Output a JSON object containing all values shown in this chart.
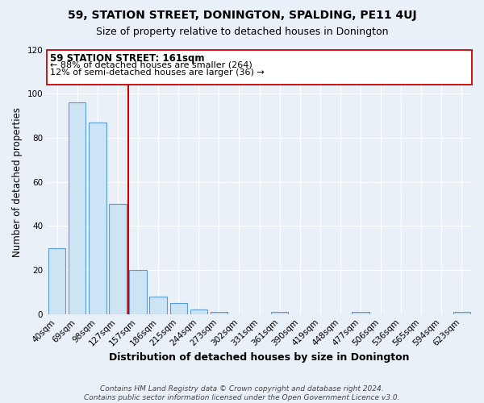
{
  "title": "59, STATION STREET, DONINGTON, SPALDING, PE11 4UJ",
  "subtitle": "Size of property relative to detached houses in Donington",
  "xlabel": "Distribution of detached houses by size in Donington",
  "ylabel": "Number of detached properties",
  "categories": [
    "40sqm",
    "69sqm",
    "98sqm",
    "127sqm",
    "157sqm",
    "186sqm",
    "215sqm",
    "244sqm",
    "273sqm",
    "302sqm",
    "331sqm",
    "361sqm",
    "390sqm",
    "419sqm",
    "448sqm",
    "477sqm",
    "506sqm",
    "536sqm",
    "565sqm",
    "594sqm",
    "623sqm"
  ],
  "values": [
    30,
    96,
    87,
    50,
    20,
    8,
    5,
    2,
    1,
    0,
    0,
    1,
    0,
    0,
    0,
    1,
    0,
    0,
    0,
    0,
    1
  ],
  "bar_color": "#cde4f5",
  "bar_edge_color": "#5b9bd5",
  "vline_pos": 3.5,
  "vline_color": "#cc0000",
  "annotation_box_color": "#cc0000",
  "annotation_line1": "59 STATION STREET: 161sqm",
  "annotation_line2": "← 88% of detached houses are smaller (264)",
  "annotation_line3": "12% of semi-detached houses are larger (36) →",
  "ylim": [
    0,
    120
  ],
  "yticks": [
    0,
    20,
    40,
    60,
    80,
    100,
    120
  ],
  "footer_line1": "Contains HM Land Registry data © Crown copyright and database right 2024.",
  "footer_line2": "Contains public sector information licensed under the Open Government Licence v3.0.",
  "background_color": "#eaf0f8",
  "plot_bg_color": "#eaf0f8",
  "title_fontsize": 10,
  "subtitle_fontsize": 9,
  "xlabel_fontsize": 9,
  "ylabel_fontsize": 8.5,
  "tick_fontsize": 7.5,
  "footer_fontsize": 6.5,
  "annotation_fontsize1": 8.5,
  "annotation_fontsize2": 8
}
